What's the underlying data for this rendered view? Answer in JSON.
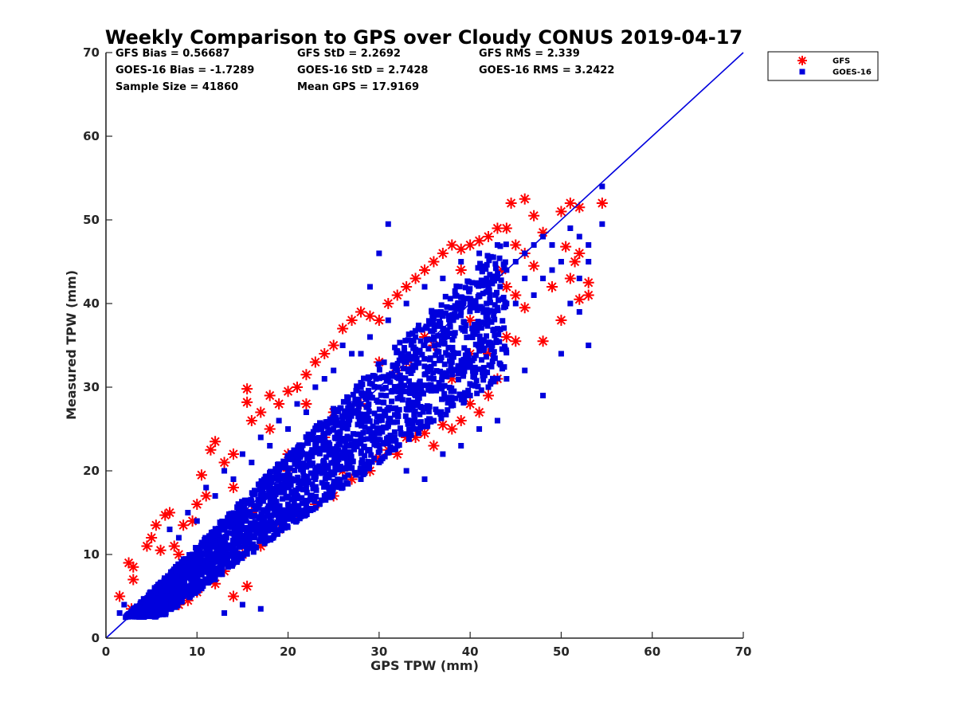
{
  "chart_data": {
    "type": "scatter",
    "title": "Weekly Comparison to GPS over Cloudy CONUS 2019-04-17",
    "xlabel": "GPS TPW (mm)",
    "ylabel": "Measured TPW (mm)",
    "xlim": [
      0,
      70
    ],
    "ylim": [
      0,
      70
    ],
    "xticks": [
      0,
      10,
      20,
      30,
      40,
      50,
      60,
      70
    ],
    "yticks": [
      0,
      10,
      20,
      30,
      40,
      50,
      60,
      70
    ],
    "grid": false,
    "legend_position": "outside-top-right",
    "stats": [
      [
        "GFS Bias = 0.56687",
        "GFS StD = 2.2692",
        "GFS RMS = 2.339"
      ],
      [
        "GOES-16 Bias = -1.7289",
        "GOES-16 StD = 2.7428",
        "GOES-16 RMS = 3.2422"
      ],
      [
        "Sample Size = 41860",
        "Mean GPS = 17.9169",
        ""
      ]
    ],
    "reference_line": {
      "x": [
        0,
        70
      ],
      "y": [
        0,
        70
      ],
      "color": "#0000dd"
    },
    "series": [
      {
        "name": "GFS",
        "marker": "asterisk",
        "color": "#ff0000",
        "points": [
          [
            1.5,
            5
          ],
          [
            2.5,
            9
          ],
          [
            3,
            7
          ],
          [
            2.8,
            3.5
          ],
          [
            5.5,
            13.5
          ],
          [
            6.5,
            14.7
          ],
          [
            5,
            12
          ],
          [
            4.5,
            11
          ],
          [
            7,
            15
          ],
          [
            6,
            10.5
          ],
          [
            7.5,
            11
          ],
          [
            8.5,
            13.5
          ],
          [
            9.5,
            14
          ],
          [
            10,
            16
          ],
          [
            11,
            17
          ],
          [
            10.5,
            19.5
          ],
          [
            11.5,
            22.5
          ],
          [
            12,
            23.5
          ],
          [
            13,
            21
          ],
          [
            14,
            22
          ],
          [
            15.5,
            29.8
          ],
          [
            15.5,
            28.2
          ],
          [
            16,
            26
          ],
          [
            17,
            27
          ],
          [
            18,
            29
          ],
          [
            19,
            28
          ],
          [
            20,
            29.5
          ],
          [
            21,
            30
          ],
          [
            22,
            31.5
          ],
          [
            23,
            33
          ],
          [
            24,
            34
          ],
          [
            25,
            35
          ],
          [
            26,
            37
          ],
          [
            27,
            38
          ],
          [
            28,
            39
          ],
          [
            29,
            38.5
          ],
          [
            30,
            38
          ],
          [
            31,
            40
          ],
          [
            32,
            41
          ],
          [
            33,
            42
          ],
          [
            34,
            43
          ],
          [
            35,
            44
          ],
          [
            36,
            45
          ],
          [
            37,
            46
          ],
          [
            38,
            47
          ],
          [
            39,
            46.5
          ],
          [
            40,
            47
          ],
          [
            41,
            47.5
          ],
          [
            42,
            48
          ],
          [
            43,
            49
          ],
          [
            44,
            49
          ],
          [
            44.5,
            52
          ],
          [
            46,
            52.5
          ],
          [
            45,
            47
          ],
          [
            47,
            50.5
          ],
          [
            48,
            48.5
          ],
          [
            46,
            46
          ],
          [
            43.5,
            44
          ],
          [
            44,
            42
          ],
          [
            45,
            41
          ],
          [
            46,
            39.5
          ],
          [
            47,
            44.5
          ],
          [
            48,
            35.5
          ],
          [
            50,
            51
          ],
          [
            51,
            52
          ],
          [
            52,
            51.5
          ],
          [
            54.5,
            52
          ],
          [
            51,
            43
          ],
          [
            52,
            46
          ],
          [
            53,
            42.5
          ],
          [
            53,
            41
          ],
          [
            52,
            40.5
          ],
          [
            50,
            38
          ],
          [
            49,
            42
          ],
          [
            50.5,
            46.8
          ],
          [
            51.5,
            45
          ],
          [
            44,
            36
          ],
          [
            45,
            35.5
          ],
          [
            43,
            31
          ],
          [
            42,
            29
          ],
          [
            41,
            27
          ],
          [
            40,
            28
          ],
          [
            39,
            26
          ],
          [
            38,
            25
          ],
          [
            37,
            25.5
          ],
          [
            35,
            24.5
          ],
          [
            34,
            24
          ],
          [
            36,
            23
          ],
          [
            33,
            24
          ],
          [
            32,
            22
          ],
          [
            31,
            22.5
          ],
          [
            30,
            21.5
          ],
          [
            29,
            20
          ],
          [
            27,
            19
          ],
          [
            25,
            17
          ],
          [
            23,
            16
          ],
          [
            21,
            15
          ],
          [
            19,
            13
          ],
          [
            17,
            11
          ],
          [
            15,
            10
          ],
          [
            13,
            8
          ],
          [
            12,
            6.5
          ],
          [
            14,
            5
          ],
          [
            15.5,
            6.2
          ],
          [
            10,
            5.5
          ],
          [
            9,
            4.5
          ],
          [
            8,
            4
          ],
          [
            6,
            4
          ],
          [
            4,
            3.5
          ],
          [
            3,
            8.5
          ],
          [
            8,
            10
          ],
          [
            12,
            12
          ],
          [
            16,
            15
          ],
          [
            20,
            20
          ],
          [
            24,
            24
          ],
          [
            28,
            28
          ],
          [
            32,
            32
          ],
          [
            36,
            35
          ],
          [
            40,
            38
          ],
          [
            20,
            22
          ],
          [
            25,
            27
          ],
          [
            30,
            33
          ],
          [
            35,
            36
          ],
          [
            18,
            25
          ],
          [
            22,
            28
          ],
          [
            14,
            18
          ],
          [
            9,
            8
          ],
          [
            26,
            20
          ],
          [
            33,
            33
          ],
          [
            38,
            31
          ],
          [
            42,
            34
          ],
          [
            40,
            34
          ],
          [
            39,
            44
          ],
          [
            44,
            42
          ]
        ]
      },
      {
        "name": "GOES-16",
        "marker": "square",
        "color": "#0000dd",
        "points": [
          [
            1.5,
            3
          ],
          [
            2,
            4
          ],
          [
            3,
            3.5
          ],
          [
            4,
            4
          ],
          [
            5,
            5
          ],
          [
            6,
            6
          ],
          [
            7,
            7
          ],
          [
            8,
            8
          ],
          [
            9,
            9
          ],
          [
            10,
            10
          ],
          [
            11,
            11
          ],
          [
            12,
            12
          ],
          [
            13,
            13
          ],
          [
            14,
            14
          ],
          [
            15,
            15
          ],
          [
            16,
            16
          ],
          [
            17,
            17
          ],
          [
            18,
            18
          ],
          [
            19,
            19
          ],
          [
            20,
            20
          ],
          [
            21,
            21
          ],
          [
            22,
            22
          ],
          [
            23,
            23
          ],
          [
            24,
            24
          ],
          [
            25,
            25
          ],
          [
            26,
            26
          ],
          [
            27,
            27
          ],
          [
            28,
            28
          ],
          [
            29,
            29
          ],
          [
            30,
            30
          ],
          [
            31,
            31
          ],
          [
            32,
            32
          ],
          [
            33,
            33
          ],
          [
            34,
            34
          ],
          [
            35,
            35
          ],
          [
            36,
            36
          ],
          [
            37,
            37
          ],
          [
            38,
            38
          ],
          [
            39,
            39
          ],
          [
            40,
            40
          ],
          [
            41,
            41
          ],
          [
            42,
            42
          ],
          [
            43,
            43
          ],
          [
            44,
            44
          ],
          [
            45,
            45
          ],
          [
            46,
            46
          ],
          [
            47,
            47
          ],
          [
            48,
            48
          ],
          [
            49,
            47
          ],
          [
            50,
            45
          ],
          [
            51,
            49
          ],
          [
            52,
            48
          ],
          [
            53,
            47
          ],
          [
            54.5,
            54
          ],
          [
            54.5,
            49.5
          ],
          [
            53,
            45
          ],
          [
            52,
            43
          ],
          [
            51,
            40
          ],
          [
            52,
            39
          ],
          [
            53,
            35
          ],
          [
            50,
            34
          ],
          [
            48,
            29
          ],
          [
            46,
            32
          ],
          [
            44,
            31
          ],
          [
            42,
            30
          ],
          [
            40,
            29
          ],
          [
            38,
            28
          ],
          [
            36,
            26
          ],
          [
            34,
            25
          ],
          [
            32,
            23
          ],
          [
            30,
            21
          ],
          [
            28,
            19
          ],
          [
            26,
            18
          ],
          [
            24,
            17
          ],
          [
            22,
            16
          ],
          [
            20,
            15
          ],
          [
            18,
            13
          ],
          [
            16,
            11
          ],
          [
            14,
            9
          ],
          [
            12,
            7
          ],
          [
            10,
            6
          ],
          [
            8,
            5
          ],
          [
            6,
            4
          ],
          [
            4,
            3
          ],
          [
            9.5,
            10
          ],
          [
            12,
            10
          ],
          [
            14,
            10
          ],
          [
            15,
            4
          ],
          [
            17,
            3.5
          ],
          [
            13,
            3
          ],
          [
            7,
            13
          ],
          [
            9,
            15
          ],
          [
            11,
            18
          ],
          [
            13,
            20
          ],
          [
            15,
            22
          ],
          [
            17,
            24
          ],
          [
            19,
            26
          ],
          [
            21,
            28
          ],
          [
            23,
            30
          ],
          [
            25,
            32
          ],
          [
            27,
            34
          ],
          [
            29,
            36
          ],
          [
            31,
            38
          ],
          [
            33,
            40
          ],
          [
            35,
            42
          ],
          [
            37,
            43
          ],
          [
            39,
            45
          ],
          [
            41,
            46
          ],
          [
            43,
            47
          ],
          [
            29,
            42
          ],
          [
            30,
            46
          ],
          [
            31,
            49.5
          ],
          [
            28,
            34
          ],
          [
            34,
            36
          ],
          [
            36,
            31
          ],
          [
            38,
            33
          ],
          [
            40,
            36
          ],
          [
            42,
            38
          ],
          [
            44,
            40
          ],
          [
            45,
            40
          ],
          [
            46,
            43
          ],
          [
            47,
            41
          ],
          [
            48,
            43
          ],
          [
            49,
            44
          ],
          [
            26,
            35
          ],
          [
            24,
            31
          ],
          [
            22,
            27
          ],
          [
            20,
            25
          ],
          [
            18,
            23
          ],
          [
            16,
            21
          ],
          [
            14,
            19
          ],
          [
            12,
            17
          ],
          [
            10,
            14
          ],
          [
            8,
            12
          ],
          [
            20,
            16
          ],
          [
            22,
            18
          ],
          [
            24,
            20
          ],
          [
            26,
            22
          ],
          [
            28,
            24
          ],
          [
            30,
            26
          ],
          [
            32,
            27
          ],
          [
            34,
            29
          ],
          [
            36,
            30
          ],
          [
            38,
            32
          ],
          [
            33,
            20
          ],
          [
            35,
            19
          ],
          [
            37,
            22
          ],
          [
            39,
            23
          ],
          [
            41,
            25
          ],
          [
            43,
            26
          ],
          [
            27,
            23
          ],
          [
            29,
            25
          ],
          [
            31,
            24
          ],
          [
            25,
            21
          ],
          [
            23,
            19
          ],
          [
            21,
            17
          ],
          [
            19,
            14
          ],
          [
            17,
            12
          ],
          [
            15,
            13
          ]
        ]
      }
    ]
  }
}
